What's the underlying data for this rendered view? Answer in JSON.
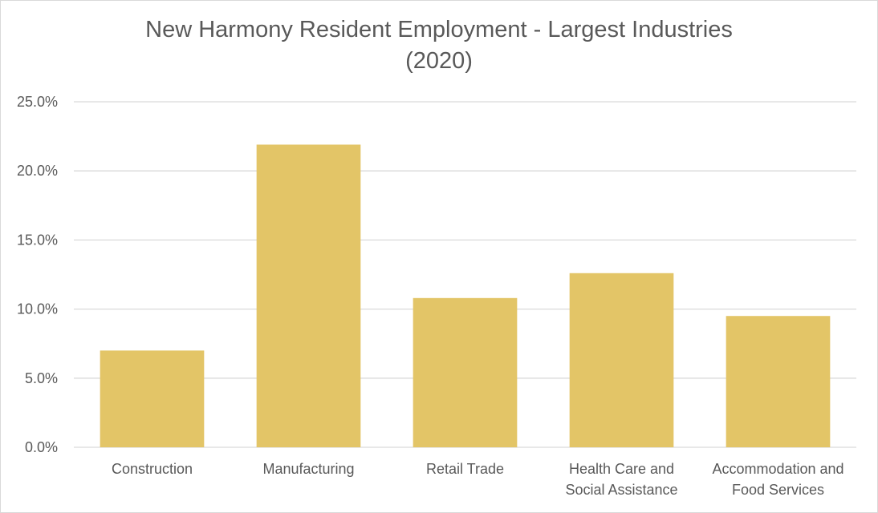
{
  "chart_data": {
    "type": "bar",
    "title_lines": [
      "New Harmony Resident Employment - Largest Industries",
      "(2020)"
    ],
    "categories": [
      [
        "Construction"
      ],
      [
        "Manufacturing"
      ],
      [
        "Retail Trade"
      ],
      [
        "Health Care and",
        "Social Assistance"
      ],
      [
        "Accommodation and",
        "Food Services"
      ]
    ],
    "values": [
      7.0,
      21.9,
      10.8,
      12.6,
      9.5
    ],
    "ylim": [
      0,
      25
    ],
    "yticks": [
      "0.0%",
      "5.0%",
      "10.0%",
      "15.0%",
      "20.0%",
      "25.0%"
    ],
    "ytick_values": [
      0,
      5,
      10,
      15,
      20,
      25
    ],
    "grid": true,
    "legend": "none",
    "colors": {
      "bar": "#e3c567",
      "grid": "#d9d9d9",
      "text": "#595959"
    }
  }
}
